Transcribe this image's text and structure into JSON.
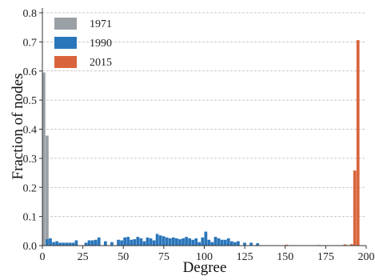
{
  "chart_data": {
    "type": "bar",
    "xlabel": "Degree",
    "ylabel": "Fraction of nodes",
    "xlim": [
      0,
      200
    ],
    "ylim": [
      0,
      0.8
    ],
    "xticks": [
      0,
      25,
      50,
      75,
      100,
      125,
      150,
      175,
      200
    ],
    "yticks": [
      0.0,
      0.1,
      0.2,
      0.3,
      0.4,
      0.5,
      0.6,
      0.7,
      0.8
    ],
    "grid": "horizontal dashed",
    "legend_position": "top-left",
    "bin_width": 2,
    "series": [
      {
        "name": "1971",
        "color": "#9aa0a6",
        "x": [
          0,
          2
        ],
        "values": [
          0.595,
          0.378
        ]
      },
      {
        "name": "1990",
        "color": "#2a76bb",
        "x": [
          2,
          4,
          6,
          8,
          10,
          12,
          14,
          16,
          18,
          20,
          26,
          28,
          30,
          32,
          34,
          38,
          42,
          46,
          48,
          50,
          52,
          54,
          56,
          58,
          60,
          62,
          64,
          66,
          68,
          70,
          72,
          74,
          76,
          78,
          80,
          82,
          84,
          86,
          88,
          90,
          92,
          94,
          96,
          98,
          100,
          102,
          104,
          106,
          108,
          110,
          112,
          114,
          116,
          118,
          120,
          124,
          128,
          132
        ],
        "values": [
          0.022,
          0.025,
          0.012,
          0.015,
          0.01,
          0.01,
          0.01,
          0.01,
          0.01,
          0.018,
          0.01,
          0.018,
          0.018,
          0.02,
          0.028,
          0.015,
          0.012,
          0.02,
          0.018,
          0.028,
          0.03,
          0.02,
          0.022,
          0.03,
          0.025,
          0.015,
          0.028,
          0.025,
          0.018,
          0.04,
          0.035,
          0.032,
          0.028,
          0.025,
          0.028,
          0.025,
          0.022,
          0.025,
          0.03,
          0.025,
          0.02,
          0.025,
          0.012,
          0.028,
          0.048,
          0.02,
          0.012,
          0.03,
          0.025,
          0.02,
          0.02,
          0.025,
          0.015,
          0.012,
          0.015,
          0.01,
          0.01,
          0.008
        ]
      },
      {
        "name": "2015",
        "color": "#d9643b",
        "x": [
          150,
          170,
          186,
          190,
          192,
          194
        ],
        "values": [
          0.003,
          0.002,
          0.004,
          0.005,
          0.258,
          0.706
        ]
      }
    ]
  }
}
